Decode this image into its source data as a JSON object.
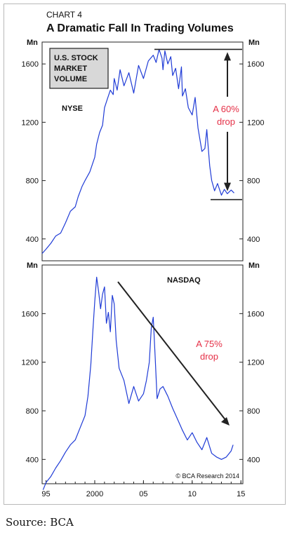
{
  "header": {
    "label": "CHART 4",
    "title": "A Dramatic Fall In Trading Volumes"
  },
  "source": "Source: BCA",
  "colors": {
    "series": "#1f3bd6",
    "annotation": "#e53047",
    "legend_box": "#d8d8d8"
  },
  "chart_data": [
    {
      "type": "line",
      "panel": "top",
      "legend_box": [
        "U.S. STOCK",
        "MARKET",
        "VOLUME"
      ],
      "series_label": "NYSE",
      "unit_left": "Mn",
      "unit_right": "Mn",
      "ylim": [
        250,
        1750
      ],
      "yticks": [
        400,
        800,
        1200,
        1600
      ],
      "xlim": [
        1994.6,
        2015.2
      ],
      "annotation": {
        "line1": "A 60%",
        "line2": "drop",
        "high": 1700,
        "low": 670
      },
      "series": [
        {
          "name": "NYSE",
          "x": [
            1994.6,
            1995,
            1995.5,
            1996,
            1996.5,
            1997,
            1997.5,
            1998,
            1998.3,
            1998.7,
            1999,
            1999.5,
            1999.8,
            2000,
            2000.2,
            2000.5,
            2000.8,
            2001,
            2001.3,
            2001.6,
            2001.9,
            2002,
            2002.3,
            2002.6,
            2003,
            2003.5,
            2004,
            2004.5,
            2005,
            2005.5,
            2006,
            2006.3,
            2006.6,
            2006.9,
            2007,
            2007.2,
            2007.5,
            2007.8,
            2008,
            2008.3,
            2008.6,
            2008.9,
            2009,
            2009.3,
            2009.6,
            2010,
            2010.3,
            2010.6,
            2011,
            2011.3,
            2011.5,
            2011.8,
            2012,
            2012.3,
            2012.6,
            2013,
            2013.3,
            2013.6,
            2014,
            2014.3
          ],
          "values": [
            300,
            330,
            370,
            420,
            440,
            510,
            590,
            620,
            690,
            760,
            800,
            860,
            920,
            960,
            1050,
            1130,
            1180,
            1300,
            1360,
            1420,
            1390,
            1500,
            1420,
            1560,
            1450,
            1540,
            1400,
            1590,
            1500,
            1620,
            1660,
            1610,
            1700,
            1640,
            1560,
            1690,
            1600,
            1650,
            1520,
            1570,
            1430,
            1580,
            1380,
            1430,
            1300,
            1250,
            1370,
            1160,
            1000,
            1020,
            1150,
            900,
            800,
            730,
            780,
            700,
            740,
            710,
            735,
            715
          ]
        }
      ]
    },
    {
      "type": "line",
      "panel": "bottom",
      "series_label": "NASDAQ",
      "unit_left": "Mn",
      "unit_right": "Mn",
      "ylim": [
        200,
        2000
      ],
      "yticks": [
        400,
        800,
        1200,
        1600
      ],
      "xlim": [
        1994.6,
        2015.2
      ],
      "xticks": [
        1995,
        2000,
        2005,
        2010,
        2015
      ],
      "xtick_labels": [
        "95",
        "2000",
        "05",
        "10",
        "15"
      ],
      "annotation": {
        "line1": "A 75%",
        "line2": "drop"
      },
      "credit": "© BCA Research 2014",
      "series": [
        {
          "name": "NASDAQ",
          "x": [
            1994.7,
            1995,
            1995.5,
            1996,
            1996.5,
            1997,
            1997.5,
            1998,
            1998.5,
            1999,
            1999.3,
            1999.6,
            1999.8,
            2000,
            2000.2,
            2000.4,
            2000.6,
            2000.8,
            2001,
            2001.2,
            2001.4,
            2001.6,
            2001.8,
            2002,
            2002.2,
            2002.5,
            2003,
            2003.5,
            2004,
            2004.5,
            2005,
            2005.3,
            2005.6,
            2005.8,
            2006,
            2006.2,
            2006.4,
            2006.7,
            2007,
            2007.5,
            2008,
            2008.5,
            2009,
            2009.5,
            2010,
            2010.5,
            2011,
            2011.5,
            2012,
            2012.5,
            2013,
            2013.5,
            2014,
            2014.2
          ],
          "values": [
            150,
            210,
            260,
            330,
            390,
            460,
            520,
            560,
            660,
            760,
            920,
            1180,
            1450,
            1700,
            1900,
            1780,
            1640,
            1760,
            1820,
            1520,
            1610,
            1450,
            1750,
            1680,
            1380,
            1150,
            1050,
            860,
            1000,
            880,
            940,
            1050,
            1200,
            1480,
            1570,
            1250,
            900,
            980,
            1000,
            920,
            820,
            730,
            640,
            560,
            620,
            540,
            480,
            580,
            450,
            420,
            400,
            420,
            470,
            520
          ]
        }
      ]
    }
  ]
}
